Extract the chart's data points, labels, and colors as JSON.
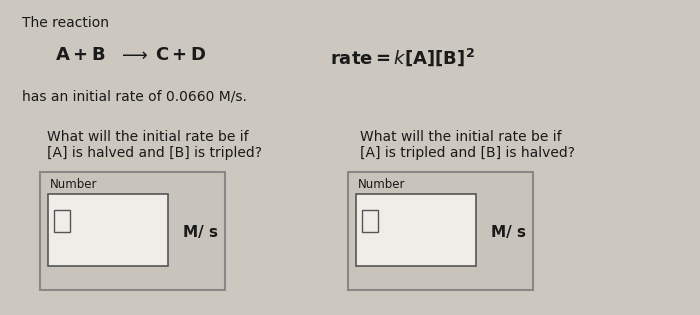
{
  "bg_color": "#ccc8bf",
  "title_text": "The reaction",
  "initial_rate_text": "has an initial rate of 0.0660 M/s.",
  "q1_line1": "What will the initial rate be if",
  "q1_line2": "[A] is halved and [B] is tripled?",
  "q2_line1": "What will the initial rate be if",
  "q2_line2": "[A] is tripled and [B] is halved?",
  "number_label": "Number",
  "unit_label": "M/ s",
  "font_color": "#1a1a1a",
  "box_bg": "#c8c4bc",
  "input_bg": "#f0ede8",
  "border_color": "#888888",
  "inner_border": "#555555"
}
